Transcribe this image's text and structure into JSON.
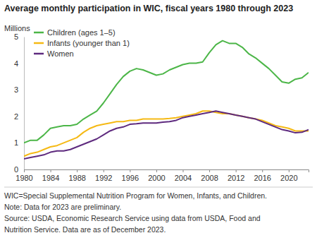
{
  "chart_data": {
    "type": "line",
    "title": "Average monthly participation in WIC, fiscal years 1980 through 2023",
    "y_label": "Millions",
    "notes": [
      "WIC=Special Supplemental Nutrition Program for Women, Infants, and Children.",
      "Note: Data for 2023 are preliminary.",
      "Source: USDA, Economic Research Service using data from USDA, Food and",
      "Nutrition Service. Data are as of December 2023."
    ],
    "x": [
      1980,
      1981,
      1982,
      1983,
      1984,
      1985,
      1986,
      1987,
      1988,
      1989,
      1990,
      1991,
      1992,
      1993,
      1994,
      1995,
      1996,
      1997,
      1998,
      1999,
      2000,
      2001,
      2002,
      2003,
      2004,
      2005,
      2006,
      2007,
      2008,
      2009,
      2010,
      2011,
      2012,
      2013,
      2014,
      2015,
      2016,
      2017,
      2018,
      2019,
      2020,
      2021,
      2022,
      2023
    ],
    "series": [
      {
        "name": "Children (ages 1–5)",
        "color": "#4cb648",
        "values": [
          1.0,
          1.1,
          1.1,
          1.3,
          1.55,
          1.6,
          1.65,
          1.65,
          1.7,
          1.9,
          2.05,
          2.2,
          2.5,
          2.85,
          3.2,
          3.5,
          3.7,
          3.8,
          3.75,
          3.65,
          3.55,
          3.6,
          3.75,
          3.85,
          3.95,
          4.0,
          4.0,
          4.05,
          4.4,
          4.7,
          4.85,
          4.75,
          4.75,
          4.6,
          4.35,
          4.2,
          4.0,
          3.8,
          3.55,
          3.3,
          3.25,
          3.4,
          3.45,
          3.65
        ]
      },
      {
        "name": "Infants (younger than 1)",
        "color": "#f5b914",
        "values": [
          0.5,
          0.6,
          0.65,
          0.75,
          0.85,
          0.9,
          1.0,
          1.1,
          1.2,
          1.4,
          1.55,
          1.65,
          1.7,
          1.75,
          1.8,
          1.8,
          1.85,
          1.85,
          1.9,
          1.9,
          1.9,
          1.9,
          1.92,
          1.95,
          2.0,
          2.05,
          2.1,
          2.2,
          2.2,
          2.15,
          2.1,
          2.1,
          2.05,
          2.0,
          1.95,
          1.9,
          1.85,
          1.75,
          1.65,
          1.6,
          1.55,
          1.45,
          1.45,
          1.45
        ]
      },
      {
        "name": "Women",
        "color": "#5e2a7e",
        "values": [
          0.4,
          0.45,
          0.5,
          0.55,
          0.65,
          0.7,
          0.7,
          0.75,
          0.85,
          0.95,
          1.05,
          1.15,
          1.3,
          1.45,
          1.55,
          1.6,
          1.7,
          1.72,
          1.75,
          1.75,
          1.75,
          1.78,
          1.8,
          1.85,
          1.95,
          2.0,
          2.05,
          2.1,
          2.15,
          2.2,
          2.15,
          2.1,
          2.05,
          2.0,
          1.95,
          1.9,
          1.8,
          1.7,
          1.6,
          1.5,
          1.45,
          1.38,
          1.4,
          1.5
        ]
      }
    ],
    "xlim": [
      1980,
      2023
    ],
    "xticks": [
      1980,
      1984,
      1988,
      1992,
      1996,
      2000,
      2004,
      2008,
      2012,
      2016,
      2020
    ],
    "ylim": [
      0,
      5
    ],
    "yticks": [
      0,
      1,
      2,
      3,
      4,
      5
    ],
    "grid": false,
    "legend": "upper left"
  }
}
